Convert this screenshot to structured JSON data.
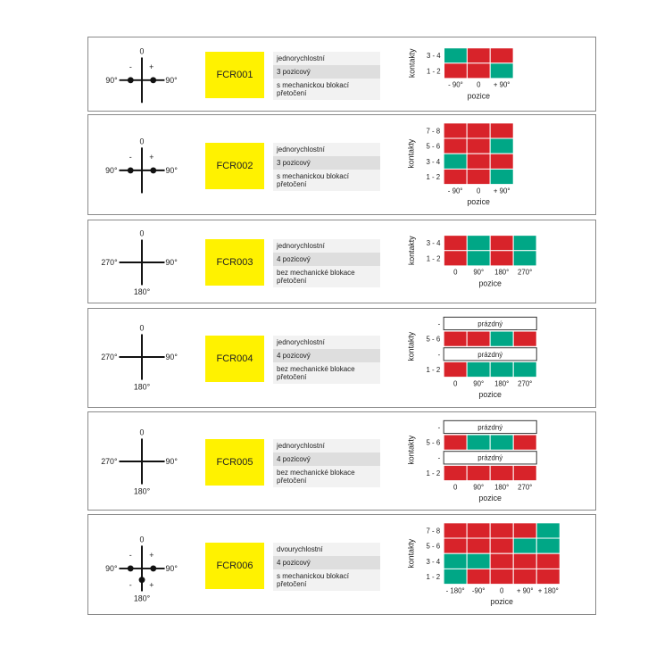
{
  "colors": {
    "active": "#d8232a",
    "inactive": "#00a786",
    "code_bg": "#fff200",
    "border": "#8a8a8a"
  },
  "rows": [
    {
      "code": "FCR001",
      "speed": "jednorychlostní",
      "positions": "3 pozicový",
      "lock": "s mechanickou blokací přetočení",
      "dial": {
        "top": "0",
        "left": "90°",
        "right": "90°",
        "bottom": "",
        "minus": "-",
        "plus": "+",
        "bottom_minus": "",
        "bottom_plus": ""
      },
      "chart": {
        "ylabel": "kontakty",
        "xlabel": "pozice",
        "contacts": [
          "3 - 4",
          "1 - 2"
        ],
        "positions": [
          "- 90°",
          "0",
          "+ 90°"
        ],
        "states": [
          [
            0,
            1,
            1
          ],
          [
            1,
            1,
            0
          ]
        ]
      }
    },
    {
      "code": "FCR002",
      "speed": "jednorychlostní",
      "positions": "3 pozicový",
      "lock": "s mechanickou blokací přetočení",
      "dial": {
        "top": "0",
        "left": "90°",
        "right": "90°",
        "bottom": "",
        "minus": "-",
        "plus": "+",
        "bottom_minus": "",
        "bottom_plus": ""
      },
      "chart": {
        "ylabel": "kontakty",
        "xlabel": "pozice",
        "contacts": [
          "7 - 8",
          "5 - 6",
          "3 - 4",
          "1 - 2"
        ],
        "positions": [
          "- 90°",
          "0",
          "+ 90°"
        ],
        "states": [
          [
            1,
            1,
            1
          ],
          [
            1,
            1,
            0
          ],
          [
            0,
            1,
            1
          ],
          [
            1,
            1,
            0
          ]
        ]
      }
    },
    {
      "code": "FCR003",
      "speed": "jednorychlostní",
      "positions": "4 pozicový",
      "lock": "bez mechanické blokace přetočení",
      "dial": {
        "top": "0",
        "left": "270°",
        "right": "90°",
        "bottom": "180°",
        "minus": "",
        "plus": "",
        "bottom_minus": "",
        "bottom_plus": ""
      },
      "chart": {
        "ylabel": "kontakty",
        "xlabel": "pozice",
        "contacts": [
          "3 - 4",
          "1 - 2"
        ],
        "positions": [
          "0",
          "90°",
          "180°",
          "270°"
        ],
        "states": [
          [
            1,
            0,
            1,
            0
          ],
          [
            1,
            0,
            1,
            0
          ]
        ]
      }
    },
    {
      "code": "FCR004",
      "speed": "jednorychlostní",
      "positions": "4 pozicový",
      "lock": "bez mechanické blokace přetočení",
      "dial": {
        "top": "0",
        "left": "270°",
        "right": "90°",
        "bottom": "180°",
        "minus": "",
        "plus": "",
        "bottom_minus": "",
        "bottom_plus": ""
      },
      "chart": {
        "ylabel": "kontakty",
        "xlabel": "pozice",
        "contacts": [
          "-",
          "5 - 6",
          "-",
          "1 - 2"
        ],
        "positions": [
          "0",
          "90°",
          "180°",
          "270°"
        ],
        "empty_label": "prázdný",
        "states": [
          null,
          [
            1,
            1,
            0,
            1
          ],
          null,
          [
            1,
            0,
            0,
            0
          ]
        ]
      }
    },
    {
      "code": "FCR005",
      "speed": "jednorychlostní",
      "positions": "4 pozicový",
      "lock": "bez mechanické blokace přetočení",
      "dial": {
        "top": "0",
        "left": "270°",
        "right": "90°",
        "bottom": "180°",
        "minus": "",
        "plus": "",
        "bottom_minus": "",
        "bottom_plus": ""
      },
      "chart": {
        "ylabel": "kontakty",
        "xlabel": "pozice",
        "contacts": [
          "-",
          "5 - 6",
          "-",
          "1 - 2"
        ],
        "positions": [
          "0",
          "90°",
          "180°",
          "270°"
        ],
        "empty_label": "prázdný",
        "states": [
          null,
          [
            1,
            0,
            0,
            1
          ],
          null,
          [
            1,
            1,
            1,
            1
          ]
        ]
      }
    },
    {
      "code": "FCR006",
      "speed": "dvourychlostní",
      "positions": "4 pozicový",
      "lock": "s mechanickou blokací přetočení",
      "dial": {
        "top": "0",
        "left": "90°",
        "right": "90°",
        "bottom": "180°",
        "minus": "-",
        "plus": "+",
        "bottom_minus": "-",
        "bottom_plus": "+"
      },
      "chart": {
        "ylabel": "kontakty",
        "xlabel": "pozice",
        "contacts": [
          "7 - 8",
          "5 - 6",
          "3 - 4",
          "1 - 2"
        ],
        "positions": [
          "- 180°",
          "-90°",
          "0",
          "+ 90°",
          "+ 180°"
        ],
        "states": [
          [
            1,
            1,
            1,
            1,
            0
          ],
          [
            1,
            1,
            1,
            0,
            0
          ],
          [
            0,
            0,
            1,
            1,
            1
          ],
          [
            0,
            1,
            1,
            1,
            1
          ]
        ]
      }
    }
  ]
}
